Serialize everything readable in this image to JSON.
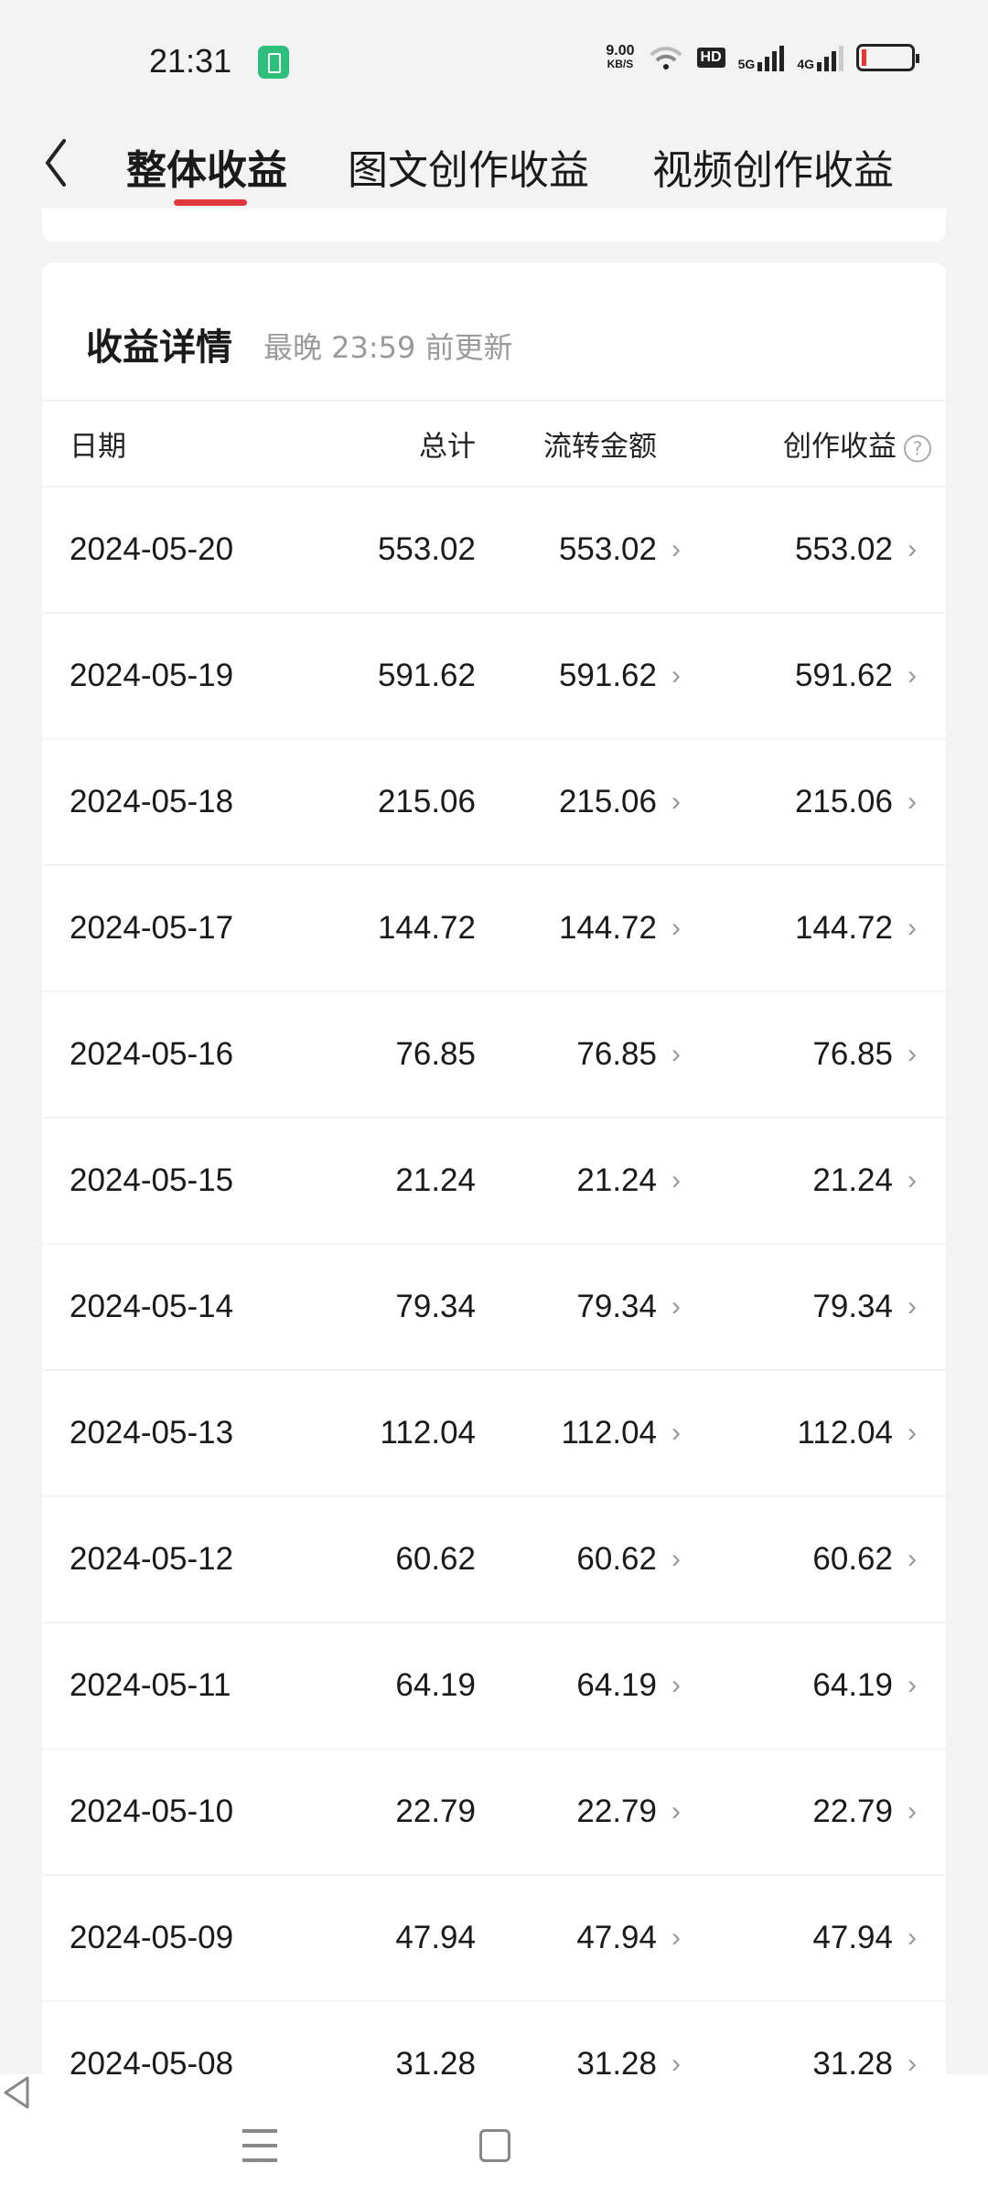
{
  "status_bar": {
    "time": "21:31",
    "net_speed": "9.00",
    "net_unit": "KB/S",
    "hd": "HD",
    "sig1": "5G",
    "sig2": "4G"
  },
  "tabs": [
    {
      "label": "整体收益",
      "active": true
    },
    {
      "label": "图文创作收益",
      "active": false
    },
    {
      "label": "视频创作收益",
      "active": false
    }
  ],
  "accent_color": "#e0393e",
  "card": {
    "title": "收益详情",
    "subtitle": "最晚 23:59 前更新"
  },
  "table": {
    "headers": {
      "date": "日期",
      "total": "总计",
      "flow": "流转金额",
      "creation": "创作收益"
    },
    "rows": [
      {
        "date": "2024-05-20",
        "total": "553.02",
        "flow": "553.02",
        "creation": "553.02"
      },
      {
        "date": "2024-05-19",
        "total": "591.62",
        "flow": "591.62",
        "creation": "591.62"
      },
      {
        "date": "2024-05-18",
        "total": "215.06",
        "flow": "215.06",
        "creation": "215.06"
      },
      {
        "date": "2024-05-17",
        "total": "144.72",
        "flow": "144.72",
        "creation": "144.72"
      },
      {
        "date": "2024-05-16",
        "total": "76.85",
        "flow": "76.85",
        "creation": "76.85"
      },
      {
        "date": "2024-05-15",
        "total": "21.24",
        "flow": "21.24",
        "creation": "21.24"
      },
      {
        "date": "2024-05-14",
        "total": "79.34",
        "flow": "79.34",
        "creation": "79.34"
      },
      {
        "date": "2024-05-13",
        "total": "112.04",
        "flow": "112.04",
        "creation": "112.04"
      },
      {
        "date": "2024-05-12",
        "total": "60.62",
        "flow": "60.62",
        "creation": "60.62"
      },
      {
        "date": "2024-05-11",
        "total": "64.19",
        "flow": "64.19",
        "creation": "64.19"
      },
      {
        "date": "2024-05-10",
        "total": "22.79",
        "flow": "22.79",
        "creation": "22.79"
      },
      {
        "date": "2024-05-09",
        "total": "47.94",
        "flow": "47.94",
        "creation": "47.94"
      },
      {
        "date": "2024-05-08",
        "total": "31.28",
        "flow": "31.28",
        "creation": "31.28"
      }
    ]
  }
}
